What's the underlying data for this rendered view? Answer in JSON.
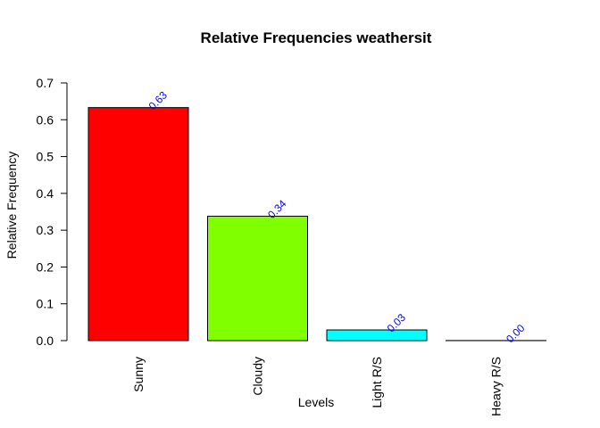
{
  "chart_data": {
    "type": "bar",
    "title": "Relative Frequencies weathersit",
    "xlabel": "Levels",
    "ylabel": "Relative Frequency",
    "categories": [
      "Sunny",
      "Cloudy",
      "Light R/S",
      "Heavy R/S"
    ],
    "values": [
      0.633,
      0.338,
      0.029,
      0.0003
    ],
    "data_labels": [
      "0.63",
      "0.34",
      "0.03",
      "0.00"
    ],
    "colors": [
      "#FF0000",
      "#7FFF00",
      "#00FFFF",
      "#FFFFFF"
    ],
    "label_color": "#0000FF",
    "ylim": [
      0,
      0.7
    ],
    "yticks": [
      0.0,
      0.1,
      0.2,
      0.3,
      0.4,
      0.5,
      0.6,
      0.7
    ],
    "ytick_labels": [
      "0.0",
      "0.1",
      "0.2",
      "0.3",
      "0.4",
      "0.5",
      "0.6",
      "0.7"
    ],
    "grid": false,
    "legend": "none"
  }
}
